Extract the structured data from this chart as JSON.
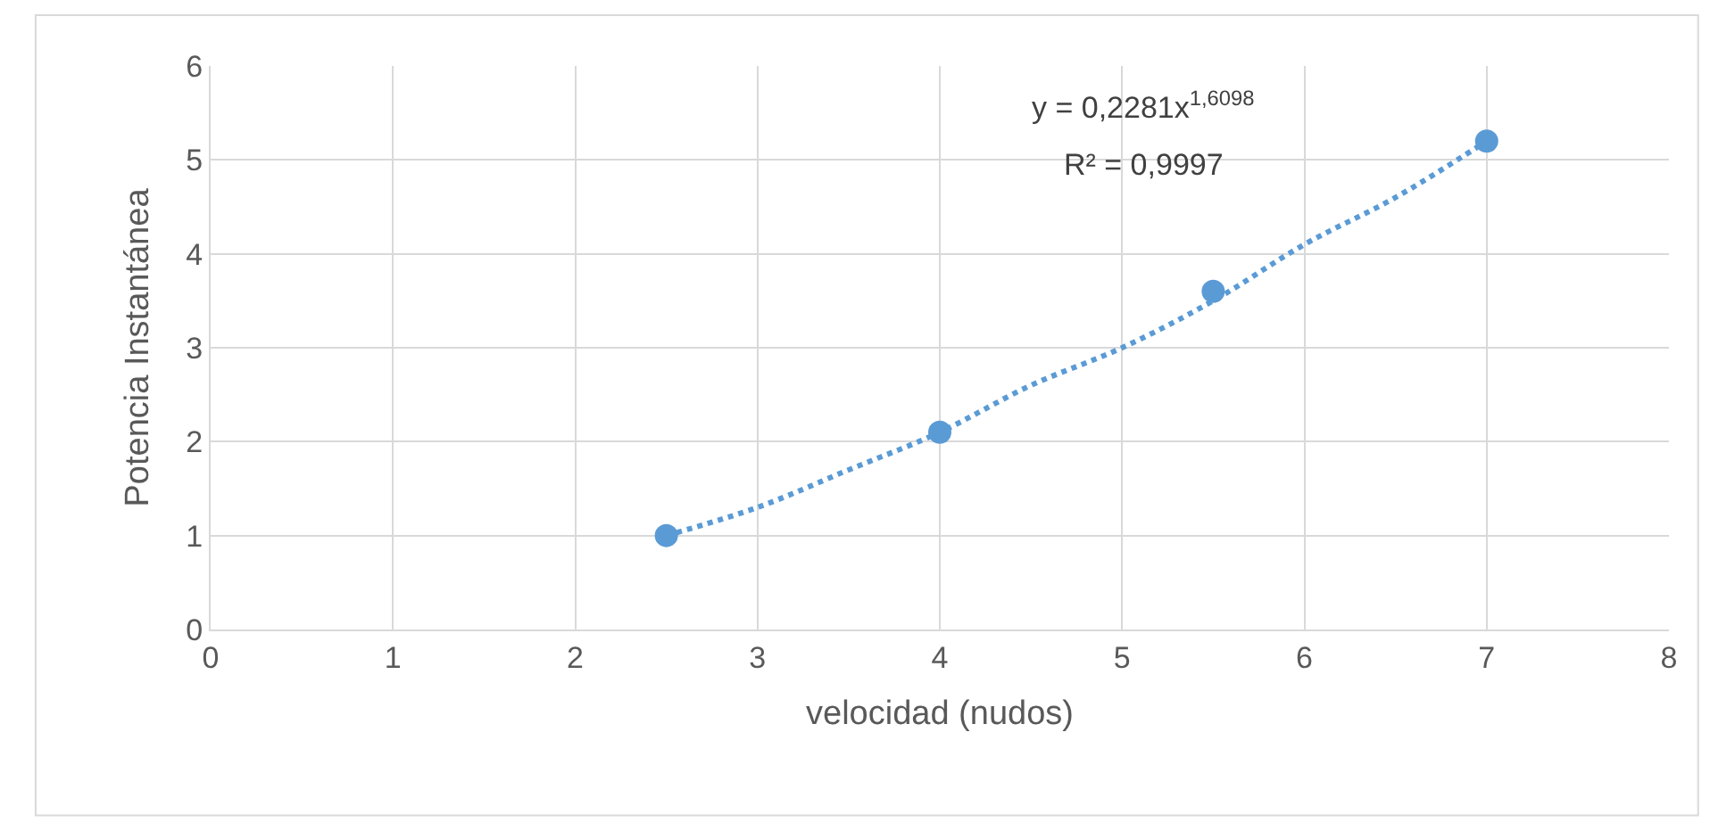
{
  "chart_data": {
    "type": "scatter",
    "xlabel": "velocidad (nudos)",
    "ylabel": "Potencia Instantánea",
    "xlim": [
      0,
      8
    ],
    "xticks": [
      0,
      1,
      2,
      3,
      4,
      5,
      6,
      7,
      8
    ],
    "ylim": [
      0,
      6
    ],
    "yticks": [
      0,
      1,
      2,
      3,
      4,
      5,
      6
    ],
    "grid": true,
    "series": [
      {
        "color": "#5b9bd5",
        "marker": "circle",
        "x": [
          2.5,
          4,
          5.5,
          7
        ],
        "values": [
          1.0,
          2.1,
          3.6,
          5.2
        ]
      },
      {
        "type": "line",
        "color": "#5b9bd5",
        "marker": "none",
        "line_style": "dotted",
        "x": [
          2.5,
          3,
          3.5,
          4,
          4.5,
          5,
          5.5,
          6,
          6.5,
          7
        ],
        "values": [
          1.0,
          1.3,
          1.7,
          2.1,
          2.6,
          3.0,
          3.5,
          4.1,
          4.6,
          5.2
        ]
      }
    ],
    "annotations": [
      "y = 0,2281x$^{1,6098}$",
      "R² = 0,9997"
    ]
  }
}
